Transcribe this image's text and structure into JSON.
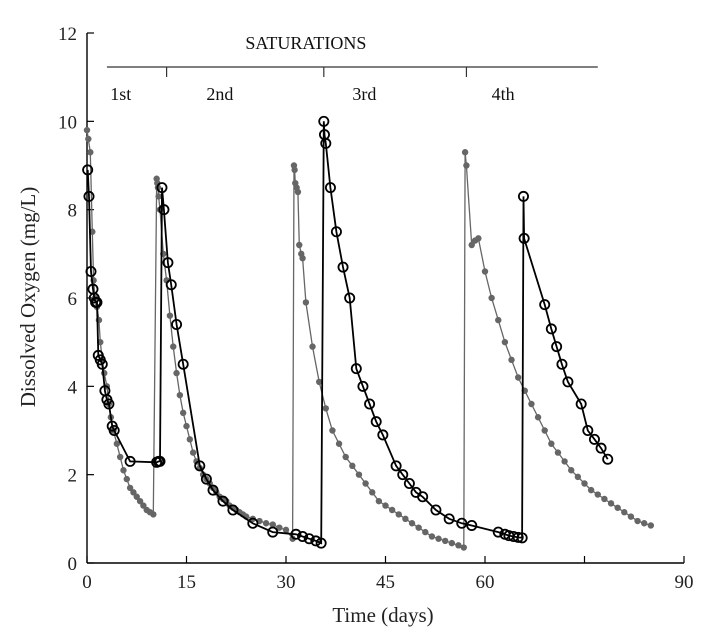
{
  "chart_data": {
    "type": "scatter",
    "title": "",
    "xlabel": "Time (days)",
    "ylabel": "Dissolved Oxygen (mg/L)",
    "xlim": [
      0,
      90
    ],
    "ylim": [
      0,
      12
    ],
    "xticks": [
      0,
      15,
      30,
      45,
      60,
      90
    ],
    "yticks": [
      0,
      2,
      4,
      6,
      8,
      10,
      12
    ],
    "xtick_labels": [
      "0",
      "15",
      "30",
      "45",
      "60",
      "90"
    ],
    "ytick_labels": [
      "0",
      "2",
      "4",
      "6",
      "8",
      "10",
      "12"
    ],
    "grid": false,
    "annotations": {
      "saturations_label": "SATURATIONS",
      "phases": [
        "1st",
        "2nd",
        "3rd",
        "4th"
      ]
    },
    "series": [
      {
        "marker": "filled-circle",
        "color": "#666666",
        "segments": [
          [
            [
              0,
              9.8
            ],
            [
              0.2,
              9.6
            ],
            [
              0.5,
              9.3
            ],
            [
              0.8,
              7.5
            ],
            [
              1.0,
              6.4
            ],
            [
              1.2,
              6.0
            ],
            [
              1.5,
              5.8
            ],
            [
              1.8,
              5.5
            ],
            [
              2.0,
              5.0
            ],
            [
              2.3,
              4.6
            ],
            [
              2.6,
              4.3
            ],
            [
              3.0,
              4.0
            ],
            [
              3.3,
              3.6
            ],
            [
              3.6,
              3.3
            ],
            [
              4.0,
              3.0
            ],
            [
              4.5,
              2.7
            ],
            [
              5.0,
              2.4
            ],
            [
              5.5,
              2.1
            ],
            [
              6.0,
              1.9
            ],
            [
              6.5,
              1.7
            ],
            [
              7.0,
              1.6
            ],
            [
              7.5,
              1.5
            ],
            [
              8.0,
              1.4
            ],
            [
              8.5,
              1.3
            ],
            [
              9.0,
              1.2
            ],
            [
              9.5,
              1.15
            ],
            [
              10.0,
              1.1
            ],
            [
              10.5,
              8.7
            ],
            [
              10.6,
              8.6
            ],
            [
              10.7,
              8.5
            ],
            [
              10.8,
              8.3
            ],
            [
              11.0,
              8.0
            ],
            [
              11.5,
              7.0
            ],
            [
              12.0,
              6.4
            ],
            [
              12.5,
              5.6
            ],
            [
              13.0,
              4.9
            ],
            [
              13.5,
              4.3
            ],
            [
              14.0,
              3.8
            ],
            [
              14.5,
              3.4
            ],
            [
              15.0,
              3.1
            ],
            [
              15.5,
              2.8
            ],
            [
              16.0,
              2.5
            ],
            [
              16.5,
              2.3
            ],
            [
              17.0,
              2.15
            ],
            [
              17.5,
              2.0
            ],
            [
              18.0,
              1.9
            ],
            [
              18.5,
              1.8
            ],
            [
              19.0,
              1.7
            ],
            [
              19.5,
              1.6
            ],
            [
              20.0,
              1.5
            ],
            [
              20.5,
              1.45
            ],
            [
              21.0,
              1.4
            ],
            [
              21.5,
              1.3
            ],
            [
              22.0,
              1.25
            ],
            [
              22.5,
              1.2
            ],
            [
              23.0,
              1.15
            ],
            [
              23.5,
              1.1
            ],
            [
              24.0,
              1.05
            ],
            [
              25.0,
              1.0
            ],
            [
              26.0,
              0.95
            ],
            [
              27.0,
              0.9
            ],
            [
              28.0,
              0.87
            ],
            [
              29.0,
              0.8
            ],
            [
              30.0,
              0.75
            ],
            [
              31.0,
              0.55
            ],
            [
              31.2,
              9.0
            ],
            [
              31.3,
              8.9
            ],
            [
              31.4,
              8.6
            ],
            [
              31.6,
              8.5
            ],
            [
              31.8,
              8.4
            ],
            [
              32.0,
              7.2
            ],
            [
              32.3,
              7.0
            ],
            [
              32.5,
              6.9
            ],
            [
              33.0,
              5.9
            ],
            [
              34.0,
              4.9
            ],
            [
              35.0,
              4.1
            ],
            [
              36.0,
              3.5
            ],
            [
              37.0,
              3.0
            ],
            [
              38.0,
              2.7
            ],
            [
              39.0,
              2.4
            ],
            [
              40.0,
              2.2
            ],
            [
              41.0,
              2.0
            ],
            [
              42.0,
              1.8
            ],
            [
              43.0,
              1.6
            ],
            [
              44.0,
              1.4
            ],
            [
              45.0,
              1.3
            ],
            [
              46.0,
              1.2
            ],
            [
              47.0,
              1.1
            ],
            [
              48.0,
              1.0
            ],
            [
              49.0,
              0.9
            ],
            [
              50.0,
              0.8
            ],
            [
              51.0,
              0.7
            ],
            [
              52.0,
              0.6
            ],
            [
              53.0,
              0.55
            ],
            [
              54.0,
              0.5
            ],
            [
              55.0,
              0.45
            ],
            [
              56.0,
              0.4
            ],
            [
              56.8,
              0.35
            ],
            [
              57.0,
              9.3
            ],
            [
              57.2,
              9.0
            ],
            [
              58.0,
              7.2
            ],
            [
              58.5,
              7.3
            ],
            [
              59.0,
              7.35
            ],
            [
              60.0,
              6.6
            ],
            [
              61.0,
              6.0
            ],
            [
              62.0,
              5.5
            ],
            [
              63.0,
              5.0
            ],
            [
              64.0,
              4.6
            ],
            [
              65.0,
              4.2
            ],
            [
              66.0,
              3.9
            ],
            [
              67.0,
              3.6
            ],
            [
              68.0,
              3.3
            ],
            [
              69.0,
              3.0
            ],
            [
              70.0,
              2.7
            ],
            [
              71.0,
              2.5
            ],
            [
              72.0,
              2.3
            ],
            [
              73.0,
              2.1
            ],
            [
              74.0,
              1.95
            ],
            [
              75.0,
              1.8
            ],
            [
              76.0,
              1.65
            ],
            [
              77.0,
              1.55
            ],
            [
              78.0,
              1.45
            ],
            [
              79.0,
              1.35
            ],
            [
              80.0,
              1.25
            ],
            [
              81.0,
              1.15
            ],
            [
              82.0,
              1.05
            ],
            [
              83.0,
              0.95
            ],
            [
              84.0,
              0.9
            ],
            [
              85.0,
              0.85
            ]
          ]
        ]
      },
      {
        "marker": "open-circle",
        "color": "#000000",
        "segments": [
          [
            [
              0.1,
              8.9
            ],
            [
              0.3,
              8.3
            ],
            [
              0.6,
              6.6
            ],
            [
              0.9,
              6.2
            ],
            [
              1.1,
              6.0
            ],
            [
              1.3,
              5.9
            ],
            [
              1.5,
              5.9
            ],
            [
              1.7,
              4.7
            ],
            [
              2.0,
              4.6
            ],
            [
              2.3,
              4.5
            ],
            [
              2.7,
              3.9
            ],
            [
              3.0,
              3.7
            ],
            [
              3.3,
              3.6
            ],
            [
              3.8,
              3.1
            ],
            [
              4.1,
              3.0
            ],
            [
              6.5,
              2.3
            ],
            [
              10.5,
              2.28
            ],
            [
              10.8,
              2.3
            ],
            [
              11.0,
              2.3
            ],
            [
              11.3,
              8.5
            ],
            [
              11.6,
              8.0
            ],
            [
              12.2,
              6.8
            ],
            [
              12.7,
              6.3
            ],
            [
              13.5,
              5.4
            ],
            [
              14.5,
              4.5
            ],
            [
              17.0,
              2.2
            ],
            [
              18.0,
              1.9
            ],
            [
              19.0,
              1.65
            ],
            [
              20.5,
              1.4
            ],
            [
              22.0,
              1.2
            ],
            [
              25.0,
              0.9
            ],
            [
              28.0,
              0.7
            ],
            [
              31.5,
              0.65
            ],
            [
              32.5,
              0.6
            ],
            [
              33.5,
              0.55
            ],
            [
              34.5,
              0.5
            ],
            [
              35.3,
              0.45
            ],
            [
              35.7,
              10.0
            ],
            [
              35.8,
              9.7
            ],
            [
              36.0,
              9.5
            ],
            [
              36.7,
              8.5
            ],
            [
              37.6,
              7.5
            ],
            [
              38.6,
              6.7
            ],
            [
              39.6,
              6.0
            ],
            [
              40.6,
              4.4
            ],
            [
              41.6,
              4.0
            ],
            [
              42.6,
              3.6
            ],
            [
              43.6,
              3.2
            ],
            [
              44.6,
              2.9
            ],
            [
              46.6,
              2.2
            ],
            [
              47.6,
              2.0
            ],
            [
              48.6,
              1.8
            ],
            [
              49.6,
              1.6
            ],
            [
              50.6,
              1.5
            ],
            [
              52.6,
              1.2
            ],
            [
              54.6,
              1.0
            ],
            [
              56.5,
              0.9
            ],
            [
              58.0,
              0.85
            ],
            [
              62.0,
              0.7
            ],
            [
              63.0,
              0.65
            ],
            [
              63.6,
              0.62
            ],
            [
              64.3,
              0.6
            ],
            [
              65.0,
              0.58
            ],
            [
              65.6,
              0.57
            ],
            [
              65.8,
              8.3
            ],
            [
              65.9,
              7.35
            ],
            [
              69.0,
              5.85
            ],
            [
              70.0,
              5.3
            ],
            [
              70.8,
              4.9
            ],
            [
              71.6,
              4.5
            ],
            [
              72.5,
              4.1
            ],
            [
              74.5,
              3.6
            ],
            [
              75.5,
              3.0
            ],
            [
              76.5,
              2.8
            ],
            [
              77.5,
              2.6
            ],
            [
              78.5,
              2.35
            ]
          ]
        ]
      }
    ]
  }
}
